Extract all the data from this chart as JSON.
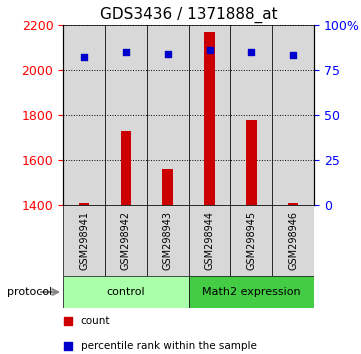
{
  "title": "GDS3436 / 1371888_at",
  "samples": [
    "GSM298941",
    "GSM298942",
    "GSM298943",
    "GSM298944",
    "GSM298945",
    "GSM298946"
  ],
  "counts": [
    1410,
    1730,
    1560,
    2170,
    1780,
    1410
  ],
  "percentiles": [
    82,
    85,
    84,
    86,
    85,
    83
  ],
  "ylim_left": [
    1400,
    2200
  ],
  "ylim_right": [
    0,
    100
  ],
  "yticks_left": [
    1400,
    1600,
    1800,
    2000,
    2200
  ],
  "yticks_right": [
    0,
    25,
    50,
    75,
    100
  ],
  "yticklabels_right": [
    "0",
    "25",
    "50",
    "75",
    "100%"
  ],
  "bar_color": "#cc0000",
  "dot_color": "#0000cc",
  "groups": [
    {
      "label": "control",
      "start": 0,
      "end": 3,
      "color": "#aaffaa"
    },
    {
      "label": "Math2 expression",
      "start": 3,
      "end": 6,
      "color": "#44cc44"
    }
  ],
  "protocol_label": "protocol",
  "legend_items": [
    {
      "color": "#cc0000",
      "marker": "s",
      "label": "count"
    },
    {
      "color": "#0000cc",
      "marker": "s",
      "label": "percentile rank within the sample"
    }
  ],
  "sample_bg_color": "#d8d8d8",
  "title_fontsize": 11,
  "tick_fontsize": 9
}
